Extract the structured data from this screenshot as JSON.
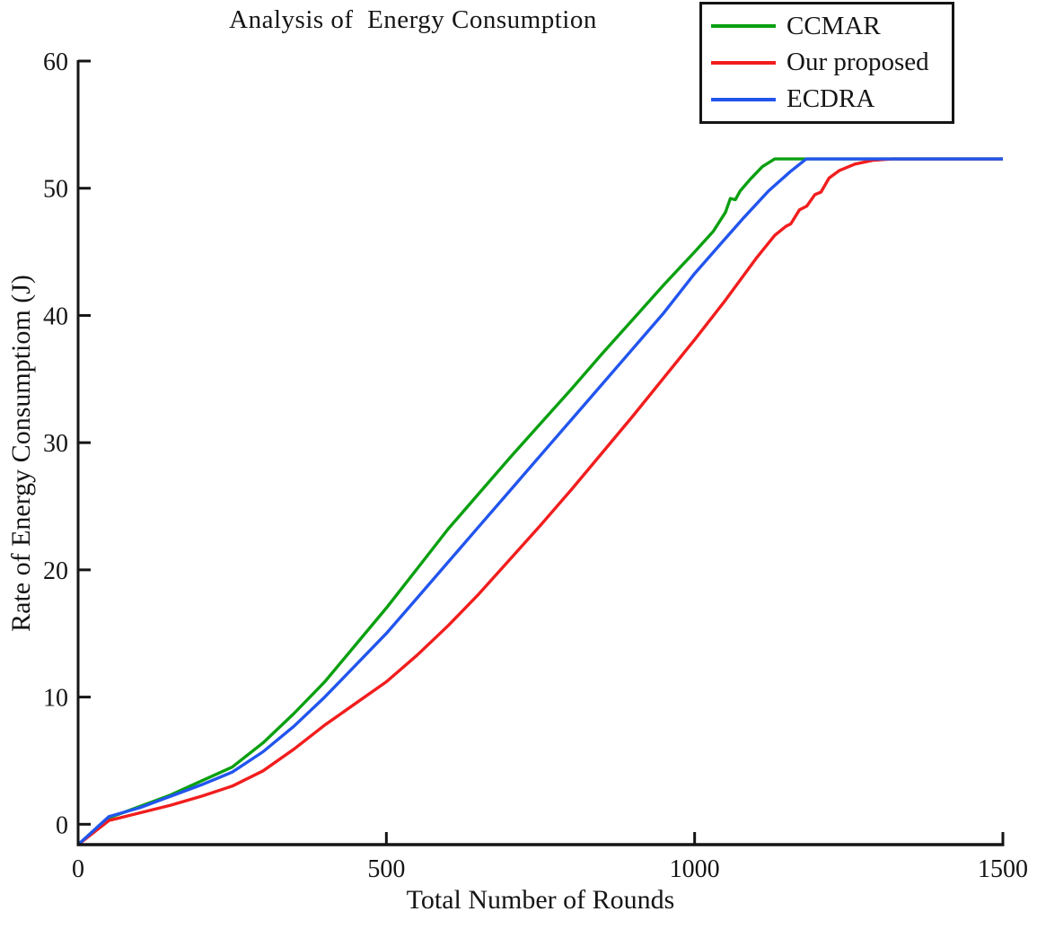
{
  "chart_data": {
    "type": "line",
    "title": "Analysis of  Energy Consumption",
    "xlabel": "Total Number of Rounds",
    "ylabel": "Rate of Energy Consumptiom (J)",
    "xlim": [
      0,
      1500
    ],
    "ylim": [
      -1.6,
      60
    ],
    "xticks": [
      0,
      500,
      1000,
      1500
    ],
    "yticks": [
      0,
      10,
      20,
      30,
      40,
      50,
      60
    ],
    "grid": false,
    "legend_position": "top-right",
    "axis_color": "#151515",
    "saturation_value": 52.3,
    "series": [
      {
        "name": "CCMAR",
        "color": "#0aa010",
        "points": [
          [
            0,
            -1.6
          ],
          [
            50,
            0.5
          ],
          [
            100,
            1.4
          ],
          [
            150,
            2.3
          ],
          [
            200,
            3.4
          ],
          [
            250,
            4.5
          ],
          [
            300,
            6.4
          ],
          [
            350,
            8.7
          ],
          [
            400,
            11.2
          ],
          [
            450,
            14.1
          ],
          [
            500,
            17.0
          ],
          [
            550,
            20.1
          ],
          [
            600,
            23.2
          ],
          [
            650,
            26.0
          ],
          [
            700,
            28.8
          ],
          [
            750,
            31.5
          ],
          [
            800,
            34.2
          ],
          [
            850,
            37.0
          ],
          [
            900,
            39.7
          ],
          [
            950,
            42.4
          ],
          [
            1000,
            45.0
          ],
          [
            1030,
            46.6
          ],
          [
            1050,
            48.1
          ],
          [
            1058,
            49.2
          ],
          [
            1066,
            49.1
          ],
          [
            1074,
            49.8
          ],
          [
            1090,
            50.7
          ],
          [
            1110,
            51.7
          ],
          [
            1130,
            52.3
          ],
          [
            1500,
            52.3
          ]
        ]
      },
      {
        "name": "Our proposed",
        "color": "#f21d1d",
        "points": [
          [
            0,
            -1.6
          ],
          [
            50,
            0.3
          ],
          [
            100,
            0.9
          ],
          [
            150,
            1.5
          ],
          [
            200,
            2.2
          ],
          [
            250,
            3.0
          ],
          [
            300,
            4.2
          ],
          [
            350,
            5.9
          ],
          [
            400,
            7.8
          ],
          [
            450,
            9.5
          ],
          [
            500,
            11.2
          ],
          [
            550,
            13.3
          ],
          [
            600,
            15.6
          ],
          [
            650,
            18.1
          ],
          [
            700,
            20.8
          ],
          [
            750,
            23.5
          ],
          [
            800,
            26.3
          ],
          [
            850,
            29.2
          ],
          [
            900,
            32.1
          ],
          [
            950,
            35.1
          ],
          [
            1000,
            38.1
          ],
          [
            1050,
            41.2
          ],
          [
            1100,
            44.5
          ],
          [
            1130,
            46.3
          ],
          [
            1148,
            47.0
          ],
          [
            1156,
            47.2
          ],
          [
            1170,
            48.3
          ],
          [
            1182,
            48.6
          ],
          [
            1195,
            49.5
          ],
          [
            1205,
            49.7
          ],
          [
            1218,
            50.8
          ],
          [
            1235,
            51.4
          ],
          [
            1260,
            51.9
          ],
          [
            1290,
            52.2
          ],
          [
            1320,
            52.3
          ],
          [
            1500,
            52.3
          ]
        ]
      },
      {
        "name": "ECDRA",
        "color": "#2255ee",
        "points": [
          [
            0,
            -1.6
          ],
          [
            50,
            0.6
          ],
          [
            100,
            1.3
          ],
          [
            150,
            2.2
          ],
          [
            200,
            3.1
          ],
          [
            250,
            4.1
          ],
          [
            300,
            5.7
          ],
          [
            350,
            7.7
          ],
          [
            400,
            10.0
          ],
          [
            450,
            12.5
          ],
          [
            500,
            15.0
          ],
          [
            550,
            17.8
          ],
          [
            600,
            20.6
          ],
          [
            650,
            23.4
          ],
          [
            700,
            26.2
          ],
          [
            750,
            29.0
          ],
          [
            800,
            31.8
          ],
          [
            850,
            34.6
          ],
          [
            900,
            37.4
          ],
          [
            950,
            40.2
          ],
          [
            1000,
            43.3
          ],
          [
            1040,
            45.5
          ],
          [
            1080,
            47.7
          ],
          [
            1120,
            49.8
          ],
          [
            1155,
            51.3
          ],
          [
            1181,
            52.3
          ],
          [
            1500,
            52.3
          ]
        ]
      }
    ]
  }
}
